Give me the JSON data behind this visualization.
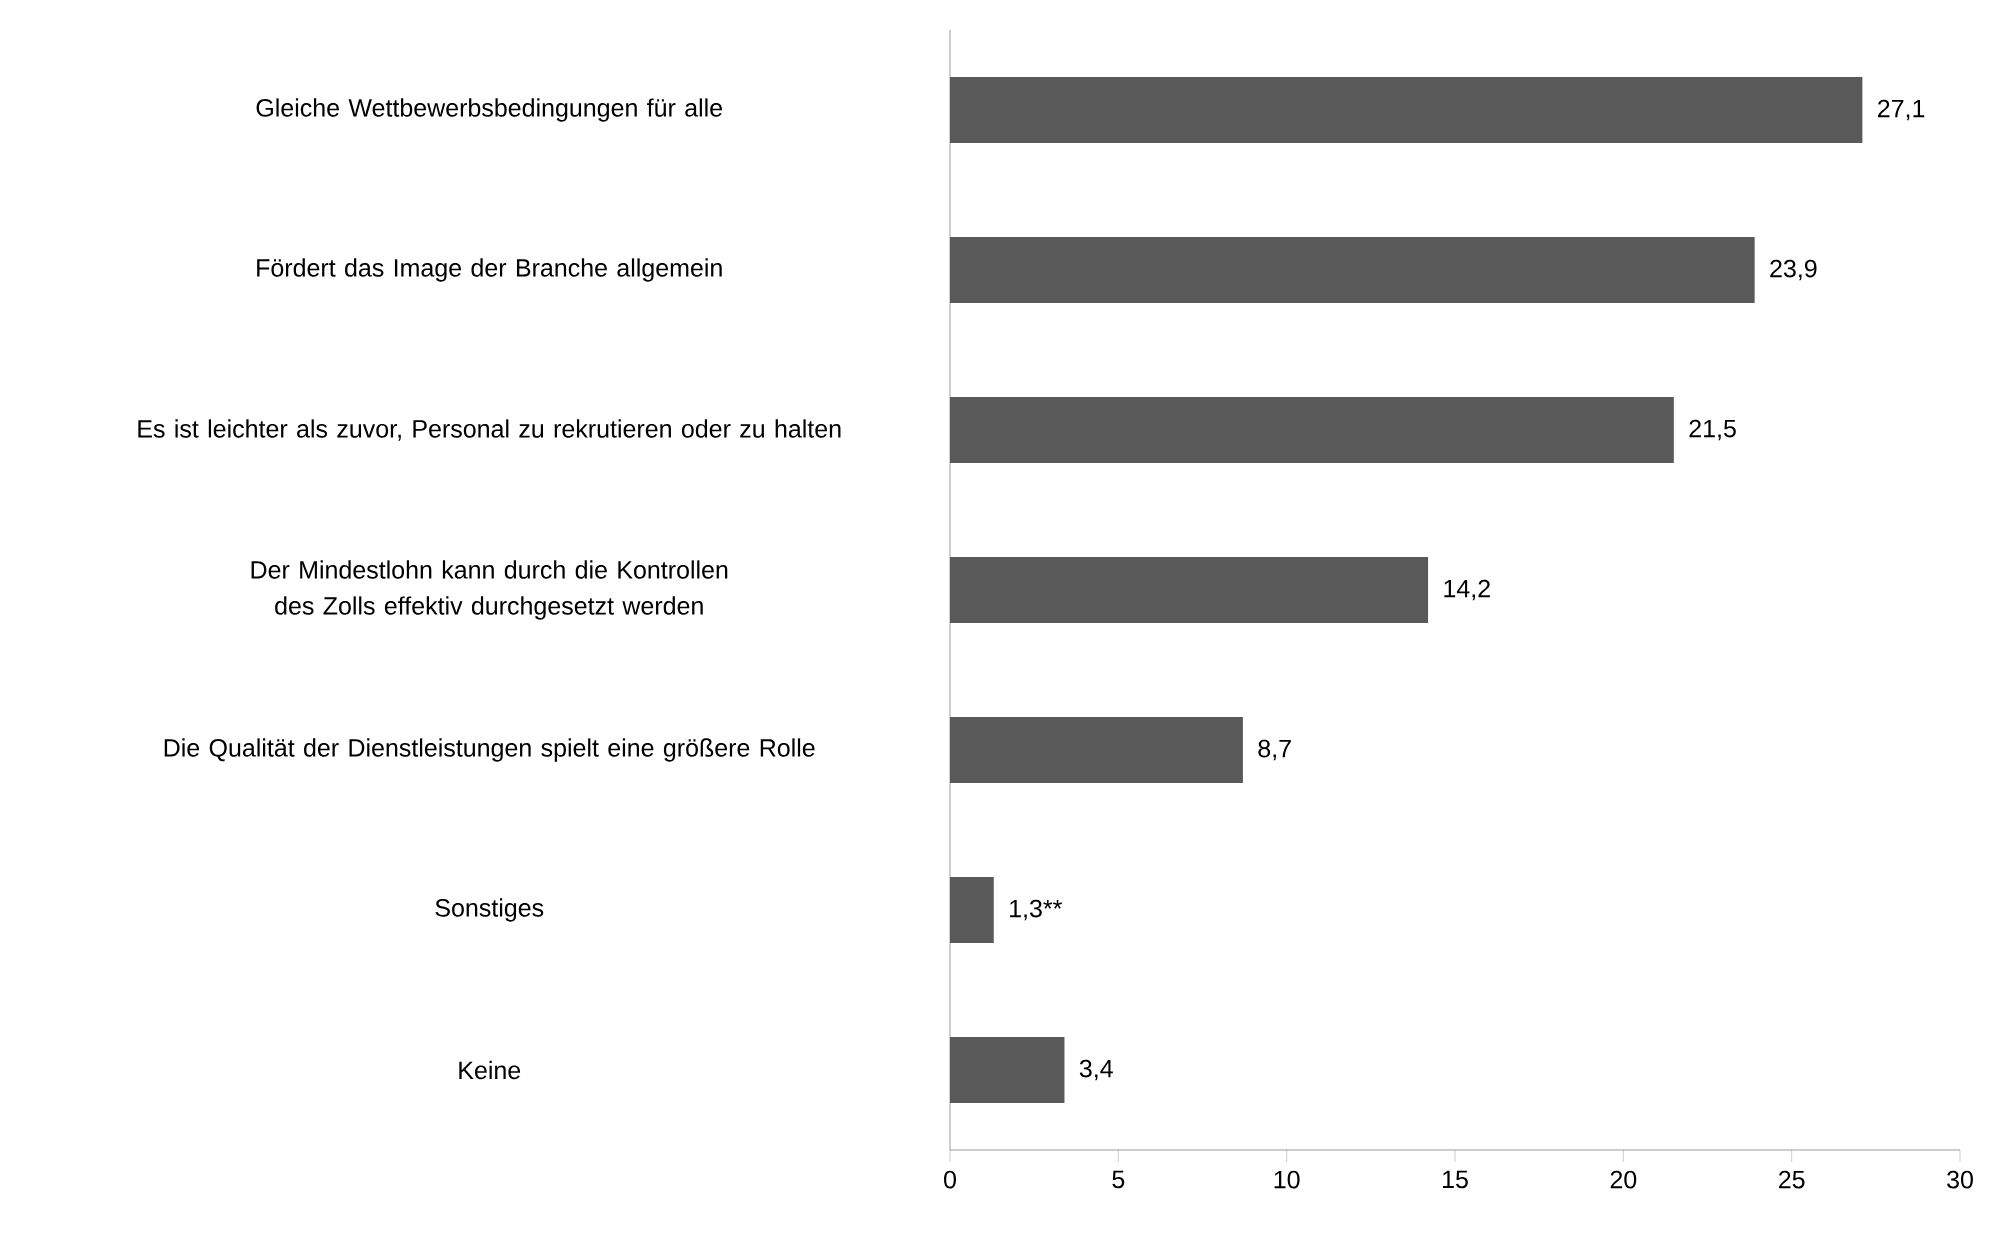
{
  "chart_data": {
    "type": "bar",
    "orientation": "horizontal",
    "categories": [
      "Gleiche Wettbewerbsbedingungen für alle",
      "Fördert das Image der Branche allgemein",
      "Es ist leichter als zuvor, Personal zu rekrutieren oder zu halten",
      "Der Mindestlohn kann durch die Kontrollen des Zolls effektiv durchgesetzt werden",
      "Die Qualität der Dienstleistungen spielt eine größere Rolle",
      "Sonstiges",
      "Keine"
    ],
    "values": [
      27.1,
      23.9,
      21.5,
      14.2,
      8.7,
      1.3,
      3.4
    ],
    "value_labels": [
      "27,1",
      "23,9",
      "21,5",
      "14,2",
      "8,7",
      "1,3**",
      "3,4"
    ],
    "color": "#595959",
    "xlim": [
      0,
      30
    ],
    "xticks": [
      0,
      5,
      10,
      15,
      20,
      25,
      30
    ]
  }
}
